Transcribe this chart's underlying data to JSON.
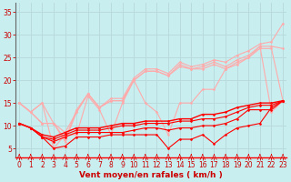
{
  "xlabel": "Vent moyen/en rafales ( km/h )",
  "bg_color": "#c8eef0",
  "grid_color": "#c0e0e0",
  "x_values": [
    0,
    1,
    2,
    3,
    4,
    5,
    6,
    7,
    8,
    9,
    10,
    11,
    12,
    13,
    14,
    15,
    16,
    17,
    18,
    19,
    20,
    21,
    22,
    23
  ],
  "ylim": [
    3,
    37
  ],
  "xlim": [
    -0.3,
    23.3
  ],
  "series": [
    {
      "y": [
        15.0,
        13.0,
        15.0,
        5.0,
        8.0,
        8.0,
        16.5,
        13.5,
        8.0,
        15.0,
        20.0,
        15.0,
        13.0,
        8.0,
        15.0,
        15.0,
        18.0,
        18.0,
        22.5,
        23.5,
        25.0,
        27.5,
        13.0,
        15.5
      ],
      "color": "#ffaaaa",
      "lw": 0.8
    },
    {
      "y": [
        15.0,
        13.0,
        15.0,
        10.5,
        8.5,
        13.0,
        17.0,
        14.0,
        15.5,
        15.5,
        20.0,
        22.0,
        22.0,
        21.0,
        23.0,
        22.5,
        22.5,
        23.5,
        22.5,
        24.0,
        25.0,
        27.0,
        27.0,
        15.5
      ],
      "color": "#ffaaaa",
      "lw": 0.8
    },
    {
      "y": [
        15.0,
        13.0,
        10.5,
        10.5,
        6.5,
        13.0,
        17.0,
        14.0,
        15.5,
        15.5,
        20.0,
        22.0,
        22.0,
        21.0,
        23.5,
        22.5,
        23.0,
        24.0,
        23.0,
        24.5,
        25.5,
        27.5,
        27.5,
        27.0
      ],
      "color": "#ffaaaa",
      "lw": 0.8
    },
    {
      "y": [
        15.0,
        13.0,
        10.5,
        10.5,
        7.0,
        13.5,
        17.0,
        14.0,
        16.0,
        16.0,
        20.5,
        22.5,
        22.5,
        21.5,
        24.0,
        23.0,
        23.5,
        24.5,
        24.0,
        25.5,
        26.5,
        28.0,
        28.5,
        32.5
      ],
      "color": "#ffaaaa",
      "lw": 0.8
    },
    {
      "y": [
        10.5,
        9.5,
        7.5,
        5.0,
        5.5,
        7.5,
        7.5,
        7.5,
        8.0,
        8.0,
        8.0,
        8.0,
        8.0,
        5.0,
        7.0,
        7.0,
        8.0,
        6.0,
        8.0,
        9.5,
        10.0,
        10.5,
        14.0,
        15.5
      ],
      "color": "#ff0000",
      "lw": 0.8
    },
    {
      "y": [
        10.5,
        9.5,
        7.5,
        6.5,
        7.5,
        8.5,
        8.5,
        8.5,
        8.5,
        8.5,
        9.0,
        9.5,
        9.5,
        9.0,
        9.5,
        9.5,
        10.0,
        10.0,
        10.5,
        11.5,
        13.5,
        13.5,
        13.5,
        15.5
      ],
      "color": "#ff0000",
      "lw": 0.8
    },
    {
      "y": [
        10.5,
        9.5,
        7.5,
        7.0,
        8.0,
        9.0,
        9.0,
        9.0,
        9.5,
        10.0,
        10.0,
        10.5,
        10.5,
        10.5,
        11.0,
        11.0,
        11.5,
        11.5,
        12.0,
        13.0,
        14.0,
        14.5,
        14.5,
        15.5
      ],
      "color": "#ff0000",
      "lw": 0.8
    },
    {
      "y": [
        10.5,
        9.5,
        8.0,
        7.5,
        8.5,
        9.5,
        9.5,
        9.5,
        10.0,
        10.5,
        10.5,
        11.0,
        11.0,
        11.0,
        11.5,
        11.5,
        12.5,
        12.5,
        13.0,
        14.0,
        14.5,
        15.0,
        15.0,
        15.5
      ],
      "color": "#ff0000",
      "lw": 1.0
    }
  ],
  "yticks": [
    5,
    10,
    15,
    20,
    25,
    30,
    35
  ],
  "xticks": [
    0,
    1,
    2,
    3,
    4,
    5,
    6,
    7,
    8,
    9,
    10,
    11,
    12,
    13,
    14,
    15,
    16,
    17,
    18,
    19,
    20,
    21,
    22,
    23
  ],
  "marker": "D",
  "marker_size": 1.5,
  "axis_color": "#888888",
  "tick_color": "#cc0000",
  "label_color": "#cc0000",
  "xlabel_fontsize": 6.5,
  "tick_fontsize": 5.5
}
